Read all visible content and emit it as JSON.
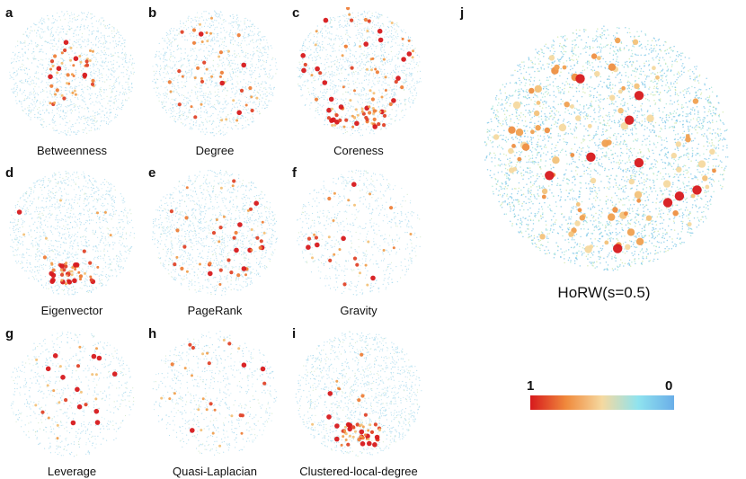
{
  "panels": [
    {
      "letter": "a",
      "caption": "Betweenness",
      "pattern": "cluster-center"
    },
    {
      "letter": "b",
      "caption": "Degree",
      "pattern": "spread"
    },
    {
      "letter": "c",
      "caption": "Coreness",
      "pattern": "top-and-bottom"
    },
    {
      "letter": "d",
      "caption": "Eigenvector",
      "pattern": "cluster-bottom"
    },
    {
      "letter": "e",
      "caption": "PageRank",
      "pattern": "spread"
    },
    {
      "letter": "f",
      "caption": "Gravity",
      "pattern": "sparse"
    },
    {
      "letter": "g",
      "caption": "Leverage",
      "pattern": "sparse"
    },
    {
      "letter": "h",
      "caption": "Quasi-Laplacian",
      "pattern": "sparse"
    },
    {
      "letter": "i",
      "caption": "Clustered-local-degree",
      "pattern": "cluster-bottom"
    }
  ],
  "main_panel": {
    "letter": "j",
    "caption": "HoRW(s=0.5)"
  },
  "colorbar": {
    "max_label": "1",
    "min_label": "0",
    "colors": [
      "#d7191c",
      "#f08a3c",
      "#f5d9a0",
      "#8fe3ef",
      "#6aaee8"
    ]
  }
}
